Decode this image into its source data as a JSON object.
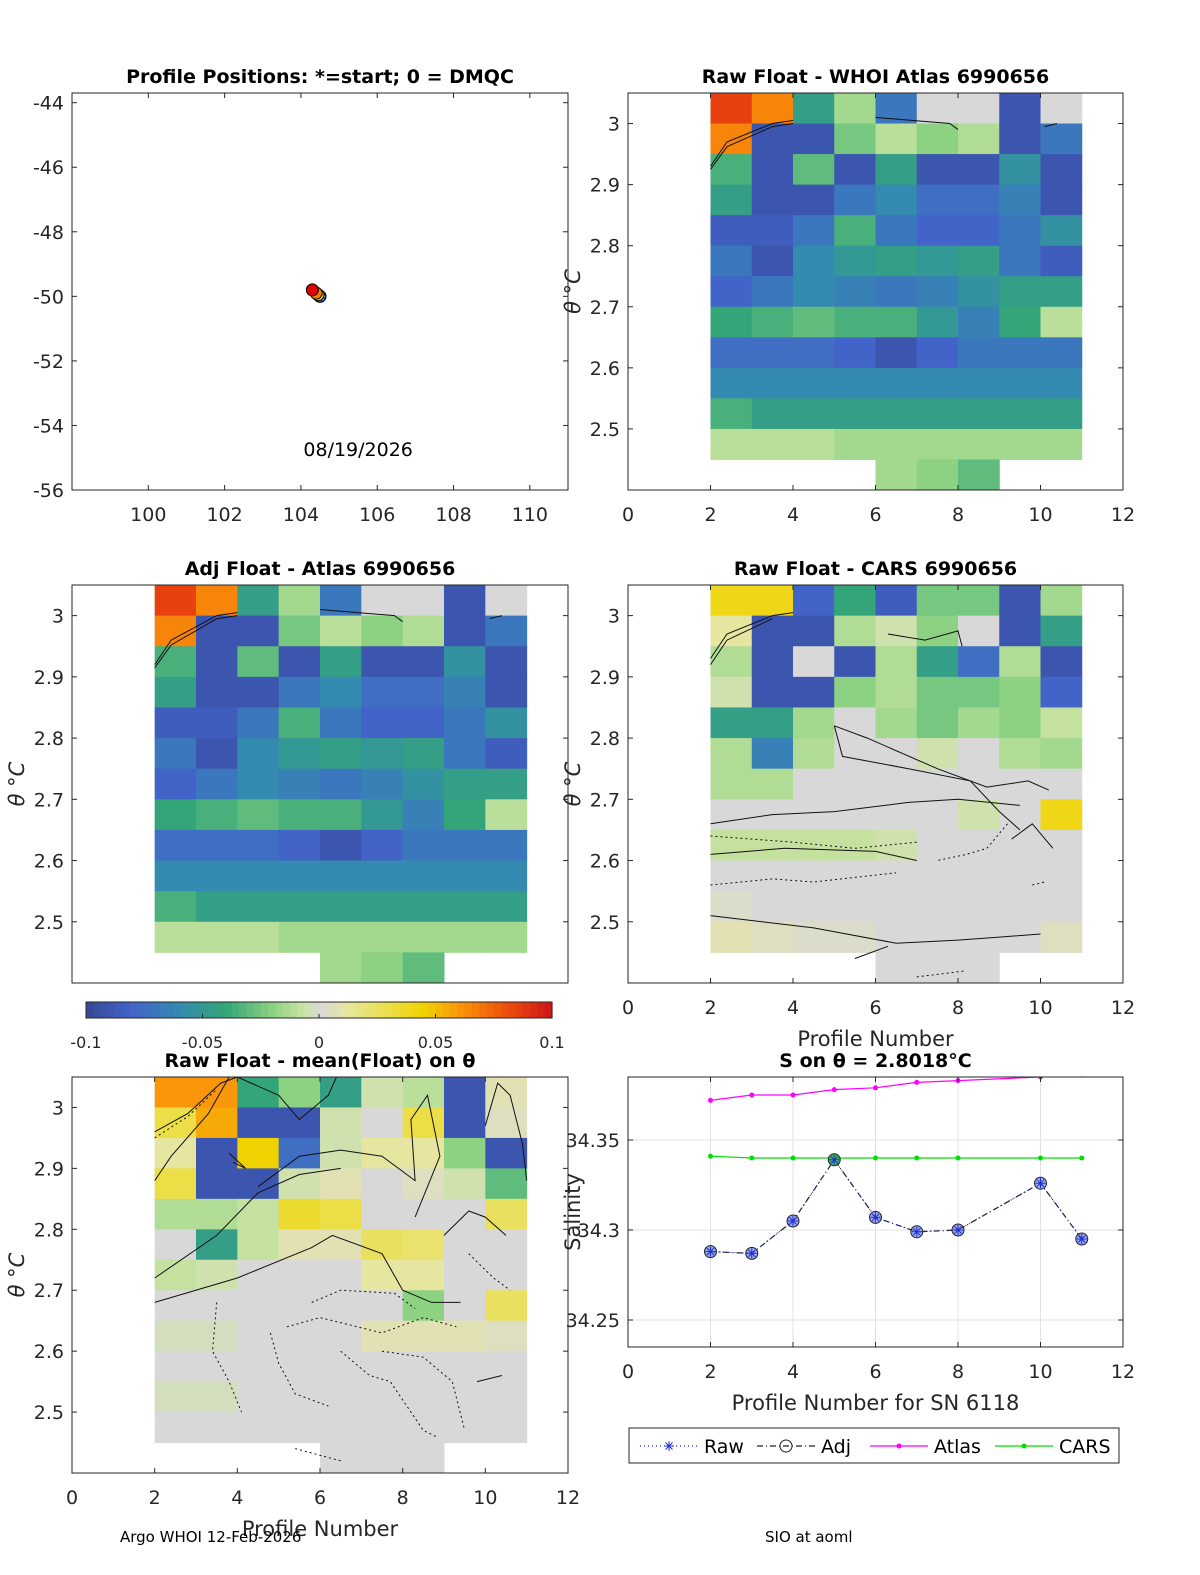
{
  "footer": {
    "left": "Argo WHOI 12-Feb-2026",
    "right": "SIO at aoml"
  },
  "colorbar": {
    "ticks": [
      "-0.1",
      "-0.05",
      "0",
      "0.05",
      "0.1"
    ],
    "range": [
      -0.1,
      0.1
    ]
  },
  "chart_data": [
    {
      "id": "positions",
      "type": "scatter",
      "title": "Profile Positions: *=start; 0 = DMQC",
      "xlabel": "",
      "ylabel": "",
      "xlim": [
        98,
        111
      ],
      "ylim": [
        -56,
        -43.7
      ],
      "xticks": [
        "100",
        "102",
        "104",
        "106",
        "108",
        "110"
      ],
      "yticks": [
        "-44",
        "-46",
        "-48",
        "-50",
        "-52",
        "-54",
        "-56"
      ],
      "annotation": "08/19/2026",
      "points": [
        {
          "x": 104.5,
          "y": -50.0,
          "color": "#1f3fd0",
          "marker": "star"
        },
        {
          "x": 104.45,
          "y": -49.95,
          "color": "#f0d000"
        },
        {
          "x": 104.4,
          "y": -49.9,
          "color": "#f08000"
        },
        {
          "x": 104.3,
          "y": -49.8,
          "color": "#e00000"
        }
      ]
    },
    {
      "id": "raw-whoi",
      "type": "heatmap",
      "title": "Raw Float - WHOI Atlas  6990656",
      "xlabel": "",
      "ylabel": "θ °C",
      "xlim": [
        0,
        12
      ],
      "ylim": [
        2.4,
        3.05
      ],
      "xticks": [
        "0",
        "2",
        "4",
        "6",
        "8",
        "10",
        "12"
      ],
      "yticks": [
        "3",
        "2.9",
        "2.8",
        "2.7",
        "2.6",
        "2.5"
      ],
      "x_edges": [
        2,
        3,
        4,
        5,
        6,
        7,
        8,
        9,
        10,
        11
      ],
      "y_centers": [
        3.025,
        2.975,
        2.925,
        2.875,
        2.825,
        2.775,
        2.725,
        2.675,
        2.625,
        2.575,
        2.525,
        2.475,
        2.425
      ],
      "values": [
        [
          0.085,
          0.065,
          -0.045,
          -0.015,
          -0.07,
          0.0,
          0.0,
          -0.09,
          0.0
        ],
        [
          0.065,
          -0.09,
          -0.09,
          -0.025,
          -0.01,
          -0.02,
          -0.012,
          -0.09,
          -0.07
        ],
        [
          -0.035,
          -0.09,
          -0.03,
          -0.09,
          -0.045,
          -0.09,
          -0.09,
          -0.055,
          -0.09
        ],
        [
          -0.045,
          -0.09,
          -0.09,
          -0.07,
          -0.06,
          -0.075,
          -0.075,
          -0.065,
          -0.09
        ],
        [
          -0.085,
          -0.085,
          -0.07,
          -0.035,
          -0.07,
          -0.08,
          -0.08,
          -0.07,
          -0.055
        ],
        [
          -0.07,
          -0.09,
          -0.06,
          -0.05,
          -0.045,
          -0.05,
          -0.045,
          -0.07,
          -0.085
        ],
        [
          -0.08,
          -0.07,
          -0.06,
          -0.065,
          -0.07,
          -0.065,
          -0.055,
          -0.045,
          -0.045
        ],
        [
          -0.04,
          -0.035,
          -0.03,
          -0.035,
          -0.035,
          -0.05,
          -0.065,
          -0.04,
          -0.01
        ],
        [
          -0.075,
          -0.075,
          -0.075,
          -0.08,
          -0.09,
          -0.08,
          -0.07,
          -0.07,
          -0.07
        ],
        [
          -0.06,
          -0.06,
          -0.06,
          -0.06,
          -0.06,
          -0.06,
          -0.06,
          -0.06,
          -0.06
        ],
        [
          -0.035,
          -0.045,
          -0.045,
          -0.045,
          -0.045,
          -0.045,
          -0.045,
          -0.045,
          -0.045
        ],
        [
          -0.01,
          -0.01,
          -0.01,
          -0.015,
          -0.015,
          -0.015,
          -0.015,
          -0.015,
          -0.015
        ],
        [
          null,
          null,
          null,
          null,
          -0.015,
          -0.02,
          -0.03,
          null,
          null
        ]
      ]
    },
    {
      "id": "adj-atlas",
      "type": "heatmap",
      "title": "Adj Float - Atlas  6990656",
      "xlabel": "",
      "ylabel": "θ °C",
      "xlim": [
        0,
        12
      ],
      "ylim": [
        2.4,
        3.05
      ],
      "xticks": [],
      "yticks": [
        "3",
        "2.9",
        "2.8",
        "2.7",
        "2.6",
        "2.5"
      ],
      "x_edges": [
        2,
        3,
        4,
        5,
        6,
        7,
        8,
        9,
        10,
        11
      ],
      "y_centers": [
        3.025,
        2.975,
        2.925,
        2.875,
        2.825,
        2.775,
        2.725,
        2.675,
        2.625,
        2.575,
        2.525,
        2.475,
        2.425
      ],
      "values": [
        [
          0.085,
          0.065,
          -0.045,
          -0.015,
          -0.07,
          0.0,
          0.0,
          -0.09,
          0.0
        ],
        [
          0.065,
          -0.09,
          -0.09,
          -0.025,
          -0.01,
          -0.02,
          -0.012,
          -0.09,
          -0.07
        ],
        [
          -0.035,
          -0.09,
          -0.03,
          -0.09,
          -0.045,
          -0.09,
          -0.09,
          -0.055,
          -0.09
        ],
        [
          -0.045,
          -0.09,
          -0.09,
          -0.07,
          -0.06,
          -0.075,
          -0.075,
          -0.065,
          -0.09
        ],
        [
          -0.085,
          -0.085,
          -0.07,
          -0.035,
          -0.07,
          -0.08,
          -0.08,
          -0.07,
          -0.055
        ],
        [
          -0.07,
          -0.09,
          -0.06,
          -0.05,
          -0.045,
          -0.05,
          -0.045,
          -0.07,
          -0.085
        ],
        [
          -0.08,
          -0.07,
          -0.06,
          -0.065,
          -0.07,
          -0.065,
          -0.055,
          -0.045,
          -0.045
        ],
        [
          -0.04,
          -0.035,
          -0.03,
          -0.035,
          -0.035,
          -0.05,
          -0.065,
          -0.04,
          -0.01
        ],
        [
          -0.075,
          -0.075,
          -0.075,
          -0.08,
          -0.09,
          -0.08,
          -0.07,
          -0.07,
          -0.07
        ],
        [
          -0.06,
          -0.06,
          -0.06,
          -0.06,
          -0.06,
          -0.06,
          -0.06,
          -0.06,
          -0.06
        ],
        [
          -0.035,
          -0.045,
          -0.045,
          -0.045,
          -0.045,
          -0.045,
          -0.045,
          -0.045,
          -0.045
        ],
        [
          -0.01,
          -0.01,
          -0.01,
          -0.015,
          -0.015,
          -0.015,
          -0.015,
          -0.015,
          -0.015
        ],
        [
          null,
          null,
          null,
          null,
          -0.015,
          -0.02,
          -0.03,
          null,
          null
        ]
      ]
    },
    {
      "id": "raw-cars",
      "type": "heatmap",
      "title": "Raw Float - CARS  6990656",
      "xlabel": "Profile Number",
      "ylabel": "θ °C",
      "xlim": [
        0,
        12
      ],
      "ylim": [
        2.4,
        3.05
      ],
      "xticks": [
        "0",
        "2",
        "4",
        "6",
        "8",
        "10",
        "12"
      ],
      "yticks": [
        "3",
        "2.9",
        "2.8",
        "2.7",
        "2.6",
        "2.5"
      ],
      "x_edges": [
        2,
        3,
        4,
        5,
        6,
        7,
        8,
        9,
        10,
        11
      ],
      "y_centers": [
        3.025,
        2.975,
        2.925,
        2.875,
        2.825,
        2.775,
        2.725,
        2.675,
        2.625,
        2.575,
        2.525,
        2.475,
        2.425
      ],
      "values": [
        [
          0.04,
          0.04,
          -0.08,
          -0.04,
          -0.085,
          -0.025,
          -0.025,
          -0.09,
          -0.015
        ],
        [
          0.012,
          -0.09,
          -0.09,
          -0.012,
          -0.005,
          -0.02,
          0.0,
          -0.09,
          -0.045
        ],
        [
          -0.012,
          -0.09,
          0.0,
          -0.09,
          -0.012,
          -0.045,
          -0.075,
          -0.012,
          -0.09
        ],
        [
          -0.005,
          -0.09,
          -0.09,
          -0.02,
          -0.012,
          -0.025,
          -0.025,
          -0.02,
          -0.08
        ],
        [
          -0.045,
          -0.045,
          -0.015,
          0.0,
          -0.015,
          -0.025,
          -0.015,
          -0.02,
          -0.008
        ],
        [
          -0.012,
          -0.065,
          -0.012,
          0.0,
          0.0,
          -0.005,
          0.0,
          -0.012,
          -0.015
        ],
        [
          -0.012,
          -0.012,
          0.0,
          0.0,
          0.0,
          0.0,
          0.0,
          0.0,
          0.0
        ],
        [
          0.0,
          0.0,
          0.0,
          0.0,
          0.0,
          0.0,
          -0.005,
          0.0,
          0.04
        ],
        [
          -0.008,
          -0.008,
          -0.008,
          -0.008,
          -0.005,
          0.0,
          0.0,
          0.0,
          0.0
        ],
        [
          0.0,
          0.0,
          0.0,
          0.0,
          0.0,
          0.0,
          0.0,
          0.0,
          0.0
        ],
        [
          0.003,
          0.0,
          0.0,
          0.0,
          0.0,
          0.0,
          0.0,
          0.0,
          0.0
        ],
        [
          0.008,
          0.005,
          0.003,
          0.003,
          0.0,
          0.0,
          0.0,
          0.0,
          0.005
        ],
        [
          null,
          null,
          null,
          null,
          0.0,
          0.0,
          0.0,
          null,
          null
        ]
      ]
    },
    {
      "id": "raw-mean",
      "type": "heatmap",
      "title": "Raw Float - mean(Float) on θ",
      "xlabel": "Profile Number",
      "ylabel": "θ °C",
      "xlim": [
        0,
        12
      ],
      "ylim": [
        2.4,
        3.05
      ],
      "xticks": [
        "0",
        "2",
        "4",
        "6",
        "8",
        "10",
        "12"
      ],
      "yticks": [
        "3",
        "2.9",
        "2.8",
        "2.7",
        "2.6",
        "2.5"
      ],
      "x_edges": [
        2,
        3,
        4,
        5,
        6,
        7,
        8,
        9,
        10,
        11
      ],
      "y_centers": [
        3.025,
        2.975,
        2.925,
        2.875,
        2.825,
        2.775,
        2.725,
        2.675,
        2.625,
        2.575,
        2.525,
        2.475,
        2.425
      ],
      "values": [
        [
          0.06,
          0.06,
          -0.04,
          -0.02,
          -0.045,
          -0.005,
          -0.01,
          -0.09,
          0.008
        ],
        [
          0.03,
          0.055,
          -0.09,
          -0.09,
          -0.005,
          0.0,
          0.03,
          -0.09,
          0.005
        ],
        [
          0.012,
          -0.09,
          0.045,
          -0.075,
          -0.005,
          0.012,
          0.012,
          -0.02,
          -0.09
        ],
        [
          0.03,
          -0.09,
          -0.09,
          -0.005,
          0.008,
          0.0,
          0.005,
          -0.005,
          -0.03
        ],
        [
          -0.012,
          -0.012,
          -0.008,
          0.035,
          0.03,
          0.0,
          0.0,
          0.0,
          0.025
        ],
        [
          0.0,
          -0.045,
          -0.008,
          0.008,
          0.008,
          0.025,
          0.022,
          0.0,
          0.0
        ],
        [
          -0.008,
          -0.005,
          0.0,
          0.0,
          0.0,
          0.012,
          0.012,
          0.0,
          0.0
        ],
        [
          0.0,
          0.0,
          0.0,
          0.0,
          0.0,
          0.0,
          -0.02,
          0.0,
          0.025
        ],
        [
          -0.003,
          -0.003,
          0.0,
          0.0,
          0.0,
          0.008,
          0.008,
          0.008,
          0.005
        ],
        [
          0.0,
          0.0,
          0.0,
          0.0,
          0.0,
          0.0,
          0.0,
          0.0,
          0.0
        ],
        [
          -0.003,
          -0.003,
          0.0,
          0.0,
          0.0,
          0.0,
          0.0,
          0.0,
          0.0
        ],
        [
          0.0,
          0.0,
          0.0,
          0.0,
          0.0,
          0.0,
          0.0,
          0.0,
          0.0
        ],
        [
          null,
          null,
          null,
          null,
          0.0,
          0.0,
          0.0,
          null,
          null
        ]
      ]
    },
    {
      "id": "salinity",
      "type": "line",
      "title": "S on θ = 2.8018°C",
      "xlabel": "Profile Number for SN 6118",
      "ylabel": "Salinity",
      "xlim": [
        0,
        12
      ],
      "ylim": [
        34.235,
        34.385
      ],
      "xticks": [
        "0",
        "2",
        "4",
        "6",
        "8",
        "10",
        "12"
      ],
      "yticks": [
        "34.35",
        "34.3",
        "34.25"
      ],
      "x": [
        2,
        3,
        4,
        5,
        6,
        7,
        8,
        10,
        11
      ],
      "series": [
        {
          "name": "Raw",
          "color": "#2030d0",
          "dash": "1,3",
          "marker": "star",
          "values": [
            34.288,
            34.287,
            34.305,
            34.339,
            34.307,
            34.299,
            34.3,
            34.326,
            34.295
          ]
        },
        {
          "name": "Adj",
          "color": "#202020",
          "dash": "6,3,1,3",
          "marker": "circle",
          "values": [
            34.288,
            34.287,
            34.305,
            34.339,
            34.307,
            34.299,
            34.3,
            34.326,
            34.295
          ]
        },
        {
          "name": "Atlas",
          "color": "#ff00ff",
          "dash": "",
          "marker": "dot",
          "values": [
            34.372,
            34.375,
            34.375,
            34.378,
            34.379,
            34.382,
            34.383,
            34.385,
            34.386
          ]
        },
        {
          "name": "CARS",
          "color": "#00e000",
          "dash": "",
          "marker": "dot",
          "values": [
            34.341,
            34.34,
            34.34,
            34.34,
            34.34,
            34.34,
            34.34,
            34.34,
            34.34
          ]
        }
      ]
    }
  ]
}
